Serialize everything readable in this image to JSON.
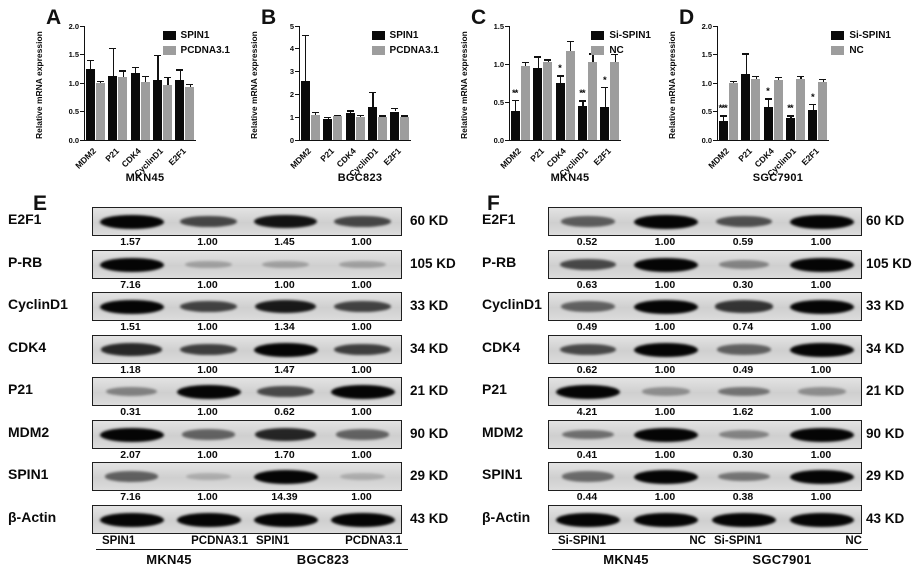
{
  "chart_data": [
    {
      "type": "bar",
      "panel": "A",
      "ylabel": "Relative mRNA expression",
      "xlabel": "MKN45",
      "ylim": [
        0,
        2.0
      ],
      "yticks": [
        "0.0",
        "0.5",
        "1.0",
        "1.5",
        "2.0"
      ],
      "categories": [
        "MDM2",
        "P21",
        "CDK4",
        "CyclinD1",
        "E2F1"
      ],
      "grid": false,
      "legend_position": "top-right",
      "series": [
        {
          "name": "SPIN1",
          "color": "#0a0a0a",
          "values": [
            1.25,
            1.12,
            1.18,
            1.05,
            1.06
          ],
          "errors": [
            0.15,
            0.5,
            0.1,
            0.45,
            0.18
          ],
          "sig": [
            "",
            "",
            "",
            "",
            ""
          ]
        },
        {
          "name": "PCDNA3.1",
          "color": "#9d9d9d",
          "values": [
            1.0,
            1.1,
            1.02,
            0.96,
            0.93
          ],
          "errors": [
            0.03,
            0.12,
            0.1,
            0.15,
            0.05
          ],
          "sig": [
            "",
            "",
            "",
            "",
            ""
          ]
        }
      ]
    },
    {
      "type": "bar",
      "panel": "B",
      "ylabel": "Relative mRNA expression",
      "xlabel": "BGC823",
      "ylim": [
        0,
        5
      ],
      "yticks": [
        "0",
        "1",
        "2",
        "3",
        "4",
        "5"
      ],
      "categories": [
        "MDM2",
        "P21",
        "CDK4",
        "CyclinD1",
        "E2F1"
      ],
      "grid": false,
      "legend_position": "top-right",
      "series": [
        {
          "name": "SPIN1",
          "color": "#0a0a0a",
          "values": [
            2.6,
            0.9,
            1.2,
            1.45,
            1.25
          ],
          "errors": [
            2.0,
            0.1,
            0.1,
            0.65,
            0.15
          ],
          "sig": [
            "",
            "",
            "",
            "",
            ""
          ]
        },
        {
          "name": "PCDNA3.1",
          "color": "#9d9d9d",
          "values": [
            1.1,
            1.05,
            1.0,
            1.0,
            1.0
          ],
          "errors": [
            0.12,
            0.06,
            0.1,
            0.08,
            0.08
          ],
          "sig": [
            "",
            "",
            "",
            "",
            ""
          ]
        }
      ]
    },
    {
      "type": "bar",
      "panel": "C",
      "ylabel": "Relative mRNA expression",
      "xlabel": "MKN45",
      "ylim": [
        0,
        1.5
      ],
      "yticks": [
        "0.0",
        "0.5",
        "1.0",
        "1.5"
      ],
      "categories": [
        "MDM2",
        "P21",
        "CDK4",
        "CyclinD1",
        "E2F1"
      ],
      "grid": false,
      "legend_position": "top-right",
      "series": [
        {
          "name": "Si-SPIN1",
          "color": "#0a0a0a",
          "values": [
            0.38,
            0.95,
            0.75,
            0.45,
            0.43
          ],
          "errors": [
            0.15,
            0.15,
            0.1,
            0.07,
            0.27
          ],
          "sig": [
            "**",
            "",
            "*",
            "**",
            "*"
          ]
        },
        {
          "name": "NC",
          "color": "#9d9d9d",
          "values": [
            0.98,
            1.03,
            1.17,
            1.02,
            1.03
          ],
          "errors": [
            0.05,
            0.03,
            0.13,
            0.12,
            0.1
          ],
          "sig": [
            "",
            "",
            "",
            "",
            ""
          ]
        }
      ]
    },
    {
      "type": "bar",
      "panel": "D",
      "ylabel": "Relative mRNA expression",
      "xlabel": "SGC7901",
      "ylim": [
        0,
        2.0
      ],
      "yticks": [
        "0.0",
        "0.5",
        "1.0",
        "1.5",
        "2.0"
      ],
      "categories": [
        "MDM2",
        "P21",
        "CDK4",
        "CyclinD1",
        "E2F1"
      ],
      "grid": false,
      "legend_position": "top-right",
      "series": [
        {
          "name": "Si-SPIN1",
          "color": "#0a0a0a",
          "values": [
            0.33,
            1.15,
            0.58,
            0.38,
            0.53
          ],
          "errors": [
            0.1,
            0.37,
            0.15,
            0.05,
            0.1
          ],
          "sig": [
            "***",
            "",
            "*",
            "**",
            "*"
          ]
        },
        {
          "name": "NC",
          "color": "#9d9d9d",
          "values": [
            1.0,
            1.07,
            1.05,
            1.07,
            1.02
          ],
          "errors": [
            0.03,
            0.05,
            0.05,
            0.05,
            0.05
          ],
          "sig": [
            "",
            "",
            "",
            "",
            ""
          ]
        }
      ]
    }
  ],
  "blot_panels": [
    {
      "panel": "E",
      "rows": [
        {
          "protein": "E2F1",
          "kd": "60 KD",
          "band_values": [
            "1.57",
            "1.00",
            "1.45",
            "1.00"
          ]
        },
        {
          "protein": "P-RB",
          "kd": "105 KD",
          "band_values": [
            "7.16",
            "1.00",
            "1.00",
            "1.00"
          ]
        },
        {
          "protein": "CyclinD1",
          "kd": "33 KD",
          "band_values": [
            "1.51",
            "1.00",
            "1.34",
            "1.00"
          ]
        },
        {
          "protein": "CDK4",
          "kd": "34 KD",
          "band_values": [
            "1.18",
            "1.00",
            "1.47",
            "1.00"
          ]
        },
        {
          "protein": "P21",
          "kd": "21 KD",
          "band_values": [
            "0.31",
            "1.00",
            "0.62",
            "1.00"
          ]
        },
        {
          "protein": "MDM2",
          "kd": "90 KD",
          "band_values": [
            "2.07",
            "1.00",
            "1.70",
            "1.00"
          ]
        },
        {
          "protein": "SPIN1",
          "kd": "29 KD",
          "band_values": [
            "7.16",
            "1.00",
            "14.39",
            "1.00"
          ]
        },
        {
          "protein": "β-Actin",
          "kd": "43 KD",
          "band_values": []
        }
      ],
      "groups": [
        {
          "lanes": [
            "SPIN1",
            "PCDNA3.1"
          ],
          "cell_line": "MKN45"
        },
        {
          "lanes": [
            "SPIN1",
            "PCDNA3.1"
          ],
          "cell_line": "BGC823"
        }
      ]
    },
    {
      "panel": "F",
      "rows": [
        {
          "protein": "E2F1",
          "kd": "60 KD",
          "band_values": [
            "0.52",
            "1.00",
            "0.59",
            "1.00"
          ]
        },
        {
          "protein": "P-RB",
          "kd": "105 KD",
          "band_values": [
            "0.63",
            "1.00",
            "0.30",
            "1.00"
          ]
        },
        {
          "protein": "CyclinD1",
          "kd": "33 KD",
          "band_values": [
            "0.49",
            "1.00",
            "0.74",
            "1.00"
          ]
        },
        {
          "protein": "CDK4",
          "kd": "34 KD",
          "band_values": [
            "0.62",
            "1.00",
            "0.49",
            "1.00"
          ]
        },
        {
          "protein": "P21",
          "kd": "21 KD",
          "band_values": [
            "4.21",
            "1.00",
            "1.62",
            "1.00"
          ]
        },
        {
          "protein": "MDM2",
          "kd": "90 KD",
          "band_values": [
            "0.41",
            "1.00",
            "0.30",
            "1.00"
          ]
        },
        {
          "protein": "SPIN1",
          "kd": "29 KD",
          "band_values": [
            "0.44",
            "1.00",
            "0.38",
            "1.00"
          ]
        },
        {
          "protein": "β-Actin",
          "kd": "43 KD",
          "band_values": []
        }
      ],
      "groups": [
        {
          "lanes": [
            "Si-SPIN1",
            "NC"
          ],
          "cell_line": "MKN45"
        },
        {
          "lanes": [
            "Si-SPIN1",
            "NC"
          ],
          "cell_line": "SGC7901"
        }
      ]
    }
  ],
  "colors": {
    "bar_black": "#0a0a0a",
    "bar_gray": "#9d9d9d",
    "strip_background": "#d8d8d8",
    "border": "#1f1f1f"
  }
}
